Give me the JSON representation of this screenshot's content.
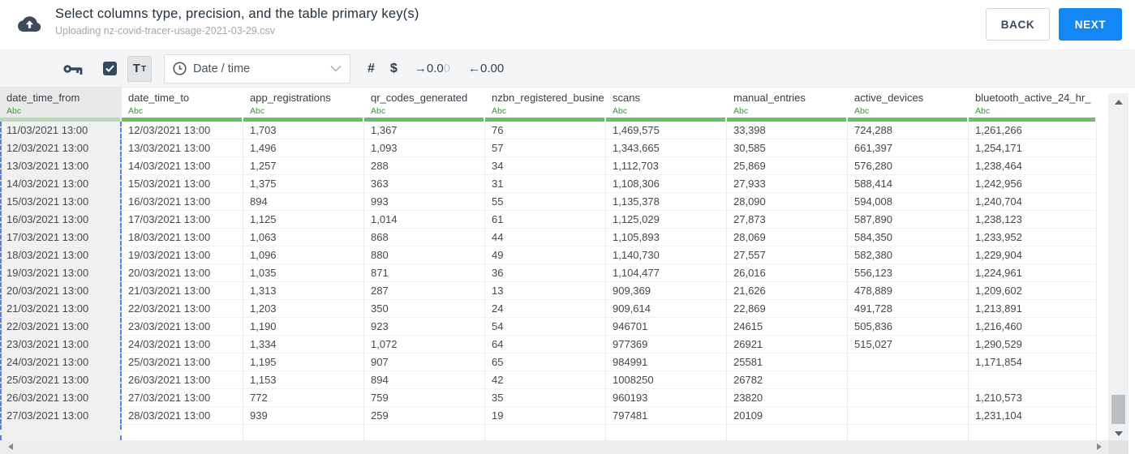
{
  "header": {
    "title": "Select columns type, precision, and the table primary key(s)",
    "subtitle": "Uploading nz-covid-tracer-usage-2021-03-29.csv",
    "back_label": "BACK",
    "next_label": "NEXT"
  },
  "toolbar": {
    "primary_key_icon": "key-icon",
    "checkbox_checked": true,
    "text_type_large": "T",
    "text_type_small": "T",
    "type_dropdown": {
      "icon": "clock-icon",
      "value": "Date / time"
    },
    "number_icon": "#",
    "currency_icon": "$",
    "add_decimal": {
      "arrow": "→",
      "value_dark": "0.0",
      "value_light": "0"
    },
    "remove_decimal": {
      "arrow": "←",
      "value": "0.00"
    }
  },
  "table": {
    "columns": [
      {
        "name": "date_time_from",
        "type": "Abc",
        "selected": true
      },
      {
        "name": "date_time_to",
        "type": "Abc",
        "selected": false
      },
      {
        "name": "app_registrations",
        "type": "Abc",
        "selected": false
      },
      {
        "name": "qr_codes_generated",
        "type": "Abc",
        "selected": false
      },
      {
        "name": "nzbn_registered_busine",
        "type": "Abc",
        "selected": false
      },
      {
        "name": "scans",
        "type": "Abc",
        "selected": false
      },
      {
        "name": "manual_entries",
        "type": "Abc",
        "selected": false
      },
      {
        "name": "active_devices",
        "type": "Abc",
        "selected": false
      },
      {
        "name": "bluetooth_active_24_hr_",
        "type": "Abc",
        "selected": false
      }
    ],
    "rows": [
      [
        "11/03/2021 13:00",
        "12/03/2021 13:00",
        "1,703",
        "1,367",
        "76",
        "1,469,575",
        "33,398",
        "724,288",
        "1,261,266"
      ],
      [
        "12/03/2021 13:00",
        "13/03/2021 13:00",
        "1,496",
        "1,093",
        "57",
        "1,343,665",
        "30,585",
        "661,397",
        "1,254,171"
      ],
      [
        "13/03/2021 13:00",
        "14/03/2021 13:00",
        "1,257",
        "288",
        "34",
        "1,112,703",
        "25,869",
        "576,280",
        "1,238,464"
      ],
      [
        "14/03/2021 13:00",
        "15/03/2021 13:00",
        "1,375",
        "363",
        "31",
        "1,108,306",
        "27,933",
        "588,414",
        "1,242,956"
      ],
      [
        "15/03/2021 13:00",
        "16/03/2021 13:00",
        "894",
        "993",
        "55",
        "1,135,378",
        "28,090",
        "594,008",
        "1,240,704"
      ],
      [
        "16/03/2021 13:00",
        "17/03/2021 13:00",
        "1,125",
        "1,014",
        "61",
        "1,125,029",
        "27,873",
        "587,890",
        "1,238,123"
      ],
      [
        "17/03/2021 13:00",
        "18/03/2021 13:00",
        "1,063",
        "868",
        "44",
        "1,105,893",
        "28,069",
        "584,350",
        "1,233,952"
      ],
      [
        "18/03/2021 13:00",
        "19/03/2021 13:00",
        "1,096",
        "880",
        "49",
        "1,140,730",
        "27,557",
        "582,380",
        "1,229,904"
      ],
      [
        "19/03/2021 13:00",
        "20/03/2021 13:00",
        "1,035",
        "871",
        "36",
        "1,104,477",
        "26,016",
        "556,123",
        "1,224,961"
      ],
      [
        "20/03/2021 13:00",
        "21/03/2021 13:00",
        "1,313",
        "287",
        "13",
        "909,369",
        "21,626",
        "478,889",
        "1,209,602"
      ],
      [
        "21/03/2021 13:00",
        "22/03/2021 13:00",
        "1,203",
        "350",
        "24",
        "909,614",
        "22,869",
        "491,728",
        "1,213,891"
      ],
      [
        "22/03/2021 13:00",
        "23/03/2021 13:00",
        "1,190",
        "923",
        "54",
        "946701",
        "24615",
        "505,836",
        "1,216,460"
      ],
      [
        "23/03/2021 13:00",
        "24/03/2021 13:00",
        "1,334",
        "1,072",
        "64",
        "977369",
        "26921",
        "515,027",
        "1,290,529"
      ],
      [
        "24/03/2021 13:00",
        "25/03/2021 13:00",
        "1,195",
        "907",
        "65",
        "984991",
        "25581",
        "",
        "1,171,854"
      ],
      [
        "25/03/2021 13:00",
        "26/03/2021 13:00",
        "1,153",
        "894",
        "42",
        "1008250",
        "26782",
        "",
        ""
      ],
      [
        "26/03/2021 13:00",
        "27/03/2021 13:00",
        "772",
        "759",
        "35",
        "960193",
        "23820",
        "",
        "1,210,573"
      ],
      [
        "27/03/2021 13:00",
        "28/03/2021 13:00",
        "939",
        "259",
        "19",
        "797481",
        "20109",
        "",
        "1,231,104"
      ]
    ]
  },
  "colors": {
    "accent_blue": "#1287f5",
    "column_underline_green": "#6abf69",
    "selected_underline_green": "#b7dcb4",
    "type_label_green": "#2f9e2f",
    "selection_dashed_blue": "#5581e0"
  }
}
